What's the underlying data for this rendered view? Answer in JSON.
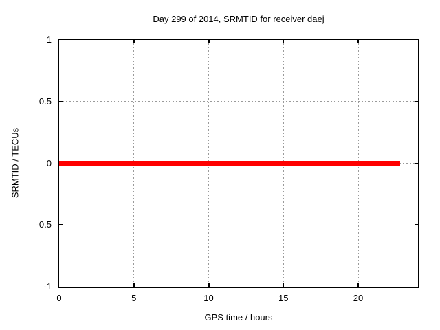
{
  "chart_data": {
    "type": "line",
    "title": "Day 299 of 2014, SRMTID for receiver daej",
    "xlabel": "GPS time / hours",
    "ylabel": "SRMTID / TECUs",
    "xlim": [
      0,
      24
    ],
    "ylim": [
      -1,
      1
    ],
    "xticks": [
      {
        "v": 0,
        "label": "0"
      },
      {
        "v": 5,
        "label": "5"
      },
      {
        "v": 10,
        "label": "10"
      },
      {
        "v": 15,
        "label": "15"
      },
      {
        "v": 20,
        "label": "20"
      }
    ],
    "yticks": [
      {
        "v": 1,
        "label": "1"
      },
      {
        "v": 0.5,
        "label": "0.5"
      },
      {
        "v": 0,
        "label": "0"
      },
      {
        "v": -0.5,
        "label": "-0.5"
      },
      {
        "v": -1,
        "label": "-1"
      }
    ],
    "grid": true,
    "legend": "none",
    "series": [
      {
        "name": "SRMTID",
        "color": "#ff0000",
        "linewidth": 7,
        "points": [
          [
            0,
            0
          ],
          [
            22.8,
            0
          ]
        ]
      }
    ]
  },
  "colors": {
    "background": "#ffffff",
    "axis": "#000000",
    "text": "#000000",
    "grid": "#9a9a9a",
    "line": "#ff0000"
  }
}
